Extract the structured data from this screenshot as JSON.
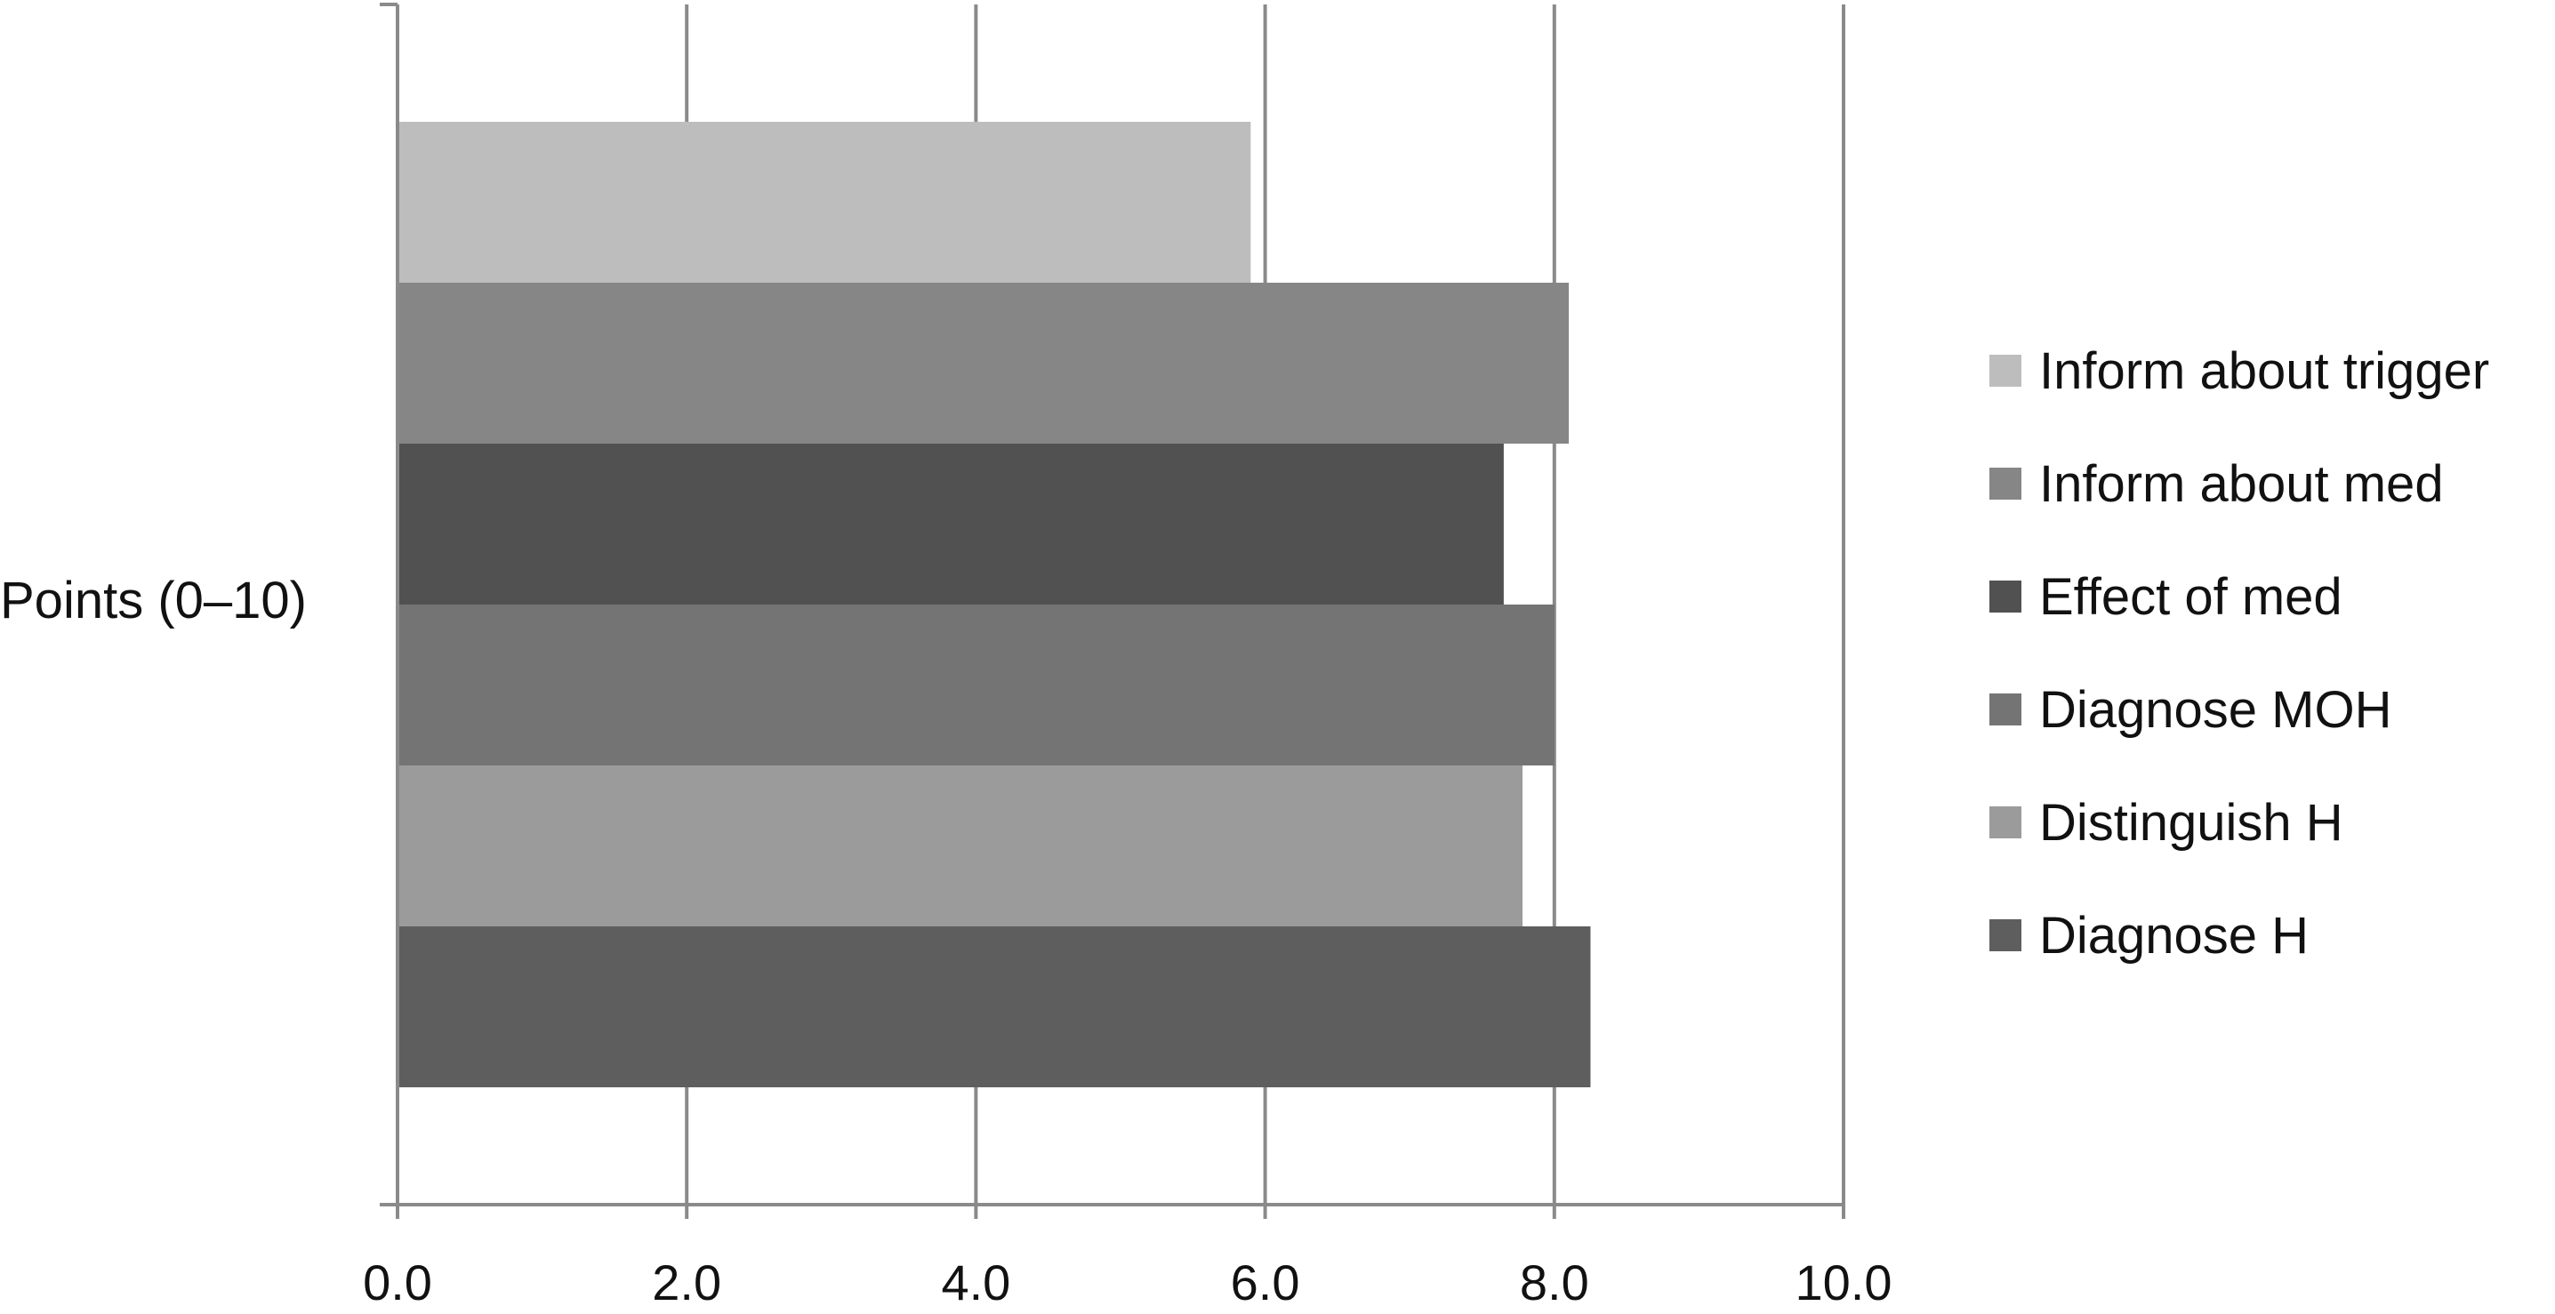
{
  "chart_data": {
    "type": "bar",
    "orientation": "horizontal",
    "categories": [
      "Points (0–10)"
    ],
    "series": [
      {
        "name": "Inform about trigger",
        "values": [
          5.9
        ],
        "color": "#bdbdbd"
      },
      {
        "name": "Inform about med",
        "values": [
          8.1
        ],
        "color": "#868686"
      },
      {
        "name": "Effect of med",
        "values": [
          7.65
        ],
        "color": "#515151"
      },
      {
        "name": "Diagnose MOH",
        "values": [
          8.0
        ],
        "color": "#747474"
      },
      {
        "name": "Distinguish H",
        "values": [
          7.78
        ],
        "color": "#9b9b9b"
      },
      {
        "name": "Diagnose H",
        "values": [
          8.25
        ],
        "color": "#5e5e5e"
      }
    ],
    "xlim": [
      0,
      10
    ],
    "x_ticks": [
      "0.0",
      "2.0",
      "4.0",
      "6.0",
      "8.0",
      "10.0"
    ],
    "grid": true,
    "legend_position": "right"
  }
}
